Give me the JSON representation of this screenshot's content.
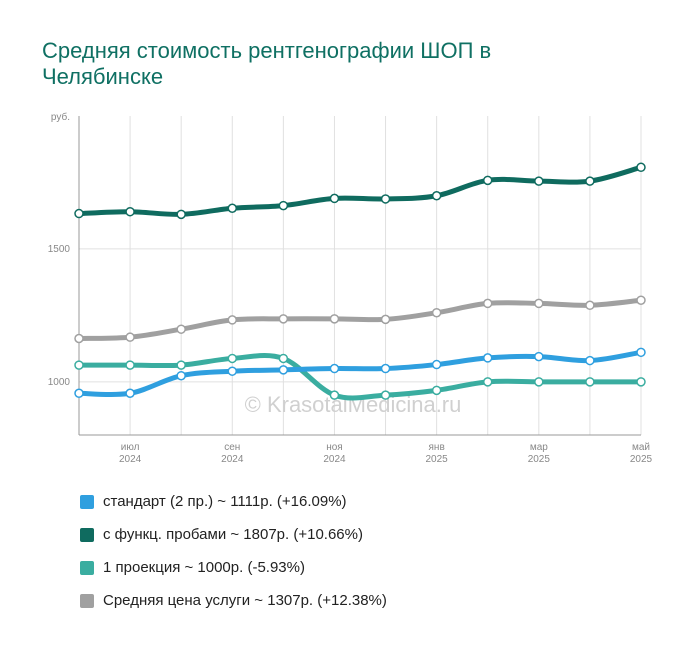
{
  "title": "Средняя стоимость рентгенографии ШОП в Челябинске",
  "watermark": "© KrasotaiMedicina.ru",
  "chart_data": {
    "type": "line",
    "y_unit": "руб.",
    "ylim": [
      800,
      2000
    ],
    "yticks": [
      1000,
      1500
    ],
    "x": [
      "2024-06",
      "2024-07",
      "2024-08",
      "2024-09",
      "2024-10",
      "2024-11",
      "2024-12",
      "2025-01",
      "2025-02",
      "2025-03",
      "2025-04",
      "2025-05"
    ],
    "xticks": [
      {
        "month": "июл",
        "year": "2024"
      },
      {
        "month": "сен",
        "year": "2024"
      },
      {
        "month": "ноя",
        "year": "2024"
      },
      {
        "month": "янв",
        "year": "2025"
      },
      {
        "month": "мар",
        "year": "2025"
      },
      {
        "month": "май",
        "year": "2025"
      }
    ],
    "grid": true,
    "series": [
      {
        "name": "Средняя цена услуги ~ 1307р. (+12.38%)",
        "color": "#a0a0a0",
        "values": [
          1163,
          1168,
          1198,
          1233,
          1237,
          1237,
          1235,
          1260,
          1295,
          1295,
          1288,
          1307
        ]
      },
      {
        "name": "1 проекция ~ 1000р. (-5.93%)",
        "color": "#3aada0",
        "values": [
          1063,
          1063,
          1063,
          1088,
          1088,
          950,
          950,
          968,
          1000,
          1000,
          1000,
          1000
        ]
      },
      {
        "name": "стандарт (2 пр.) ~ 1111р. (+16.09%)",
        "color": "#2f9fdf",
        "values": [
          957,
          957,
          1023,
          1040,
          1045,
          1050,
          1050,
          1065,
          1090,
          1095,
          1080,
          1111
        ]
      },
      {
        "name": "с функц. пробами ~ 1807р. (+10.66%)",
        "color": "#0f6b5f",
        "values": [
          1633,
          1640,
          1630,
          1653,
          1663,
          1690,
          1688,
          1700,
          1758,
          1755,
          1755,
          1807
        ]
      }
    ]
  },
  "legend": [
    {
      "label": "стандарт (2 пр.) ~ 1111р. (+16.09%)",
      "color": "#2f9fdf"
    },
    {
      "label": "с функц. пробами ~ 1807р. (+10.66%)",
      "color": "#0f6b5f"
    },
    {
      "label": "1 проекция ~ 1000р. (-5.93%)",
      "color": "#3aada0"
    },
    {
      "label": "Средняя цена услуги ~ 1307р. (+12.38%)",
      "color": "#a0a0a0"
    }
  ]
}
